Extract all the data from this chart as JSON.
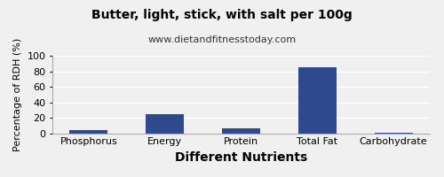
{
  "title": "Butter, light, stick, with salt per 100g",
  "subtitle": "www.dietandfitnesstoday.com",
  "xlabel": "Different Nutrients",
  "ylabel": "Percentage of RDH (%)",
  "categories": [
    "Phosphorus",
    "Energy",
    "Protein",
    "Total Fat",
    "Carbohydrate"
  ],
  "values": [
    4,
    25,
    6,
    85,
    1
  ],
  "bar_color": "#2e4a8c",
  "ylim": [
    0,
    100
  ],
  "yticks": [
    0,
    20,
    40,
    60,
    80,
    100
  ],
  "background_color": "#f0f0f0",
  "plot_bg_color": "#f0f0f0",
  "title_fontsize": 10,
  "subtitle_fontsize": 8,
  "xlabel_fontsize": 10,
  "ylabel_fontsize": 8,
  "tick_fontsize": 8,
  "grid_color": "#ffffff",
  "bar_width": 0.5
}
